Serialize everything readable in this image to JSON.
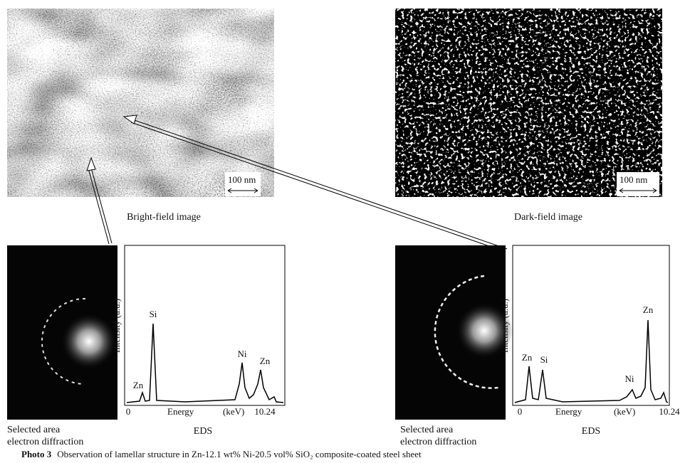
{
  "panels": [
    {
      "image_label": "Bright-field image",
      "scale_bar": "100 nm",
      "diffraction_label": [
        "Selected area",
        "electron diffraction"
      ],
      "eds": {
        "y_label": "Intensity (a.u.)",
        "x_label": "Energy",
        "x_unit": "(keV)",
        "x_start": "0",
        "x_end": "10.24",
        "title": "EDS",
        "peaks": [
          "Zn",
          "Si",
          "Ni",
          "Zn"
        ]
      }
    },
    {
      "image_label": "Dark-field image",
      "scale_bar": "100 nm",
      "diffraction_label": [
        "Selected area",
        "electron diffraction"
      ],
      "eds": {
        "y_label": "Intensity (a.u.)",
        "x_label": "Energy",
        "x_unit": "(keV)",
        "x_start": "0",
        "x_end": "10.24",
        "title": "EDS",
        "peaks": [
          "Zn",
          "Si",
          "Ni",
          "Zn"
        ]
      }
    }
  ],
  "caption": {
    "label": "Photo 3",
    "text": "Observation of lamellar structure in Zn-12.1 wt% Ni-20.5 vol% SiO₂ composite-coated steel sheet"
  }
}
